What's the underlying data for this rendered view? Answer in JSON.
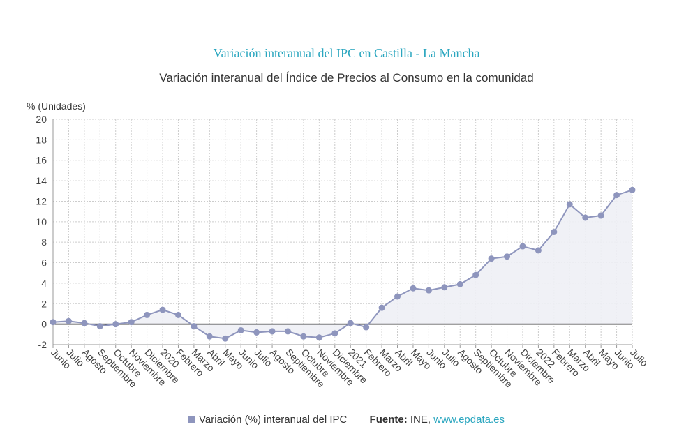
{
  "colors": {
    "series": "#8e95bd",
    "area": "#eeeff5",
    "title": "#2aa6bf",
    "grid": "#cccccc",
    "zero_line": "#000000",
    "link": "#2aa6bf"
  },
  "legend": {
    "series_label": "Variación (%) interanual del IPC",
    "source_label": "Fuente:",
    "source_value": "INE,",
    "source_link": "www.epdata.es"
  },
  "chart_data": {
    "type": "area",
    "title": "Variación interanual del IPC en Castilla - La Mancha",
    "subtitle": "Variación interanual del Índice de Precios al Consumo en la comunidad",
    "xlabel": "",
    "ylabel": "% (Unidades)",
    "ylim": [
      -2,
      20
    ],
    "yticks": [
      -2,
      0,
      2,
      4,
      6,
      8,
      10,
      12,
      14,
      16,
      18,
      20
    ],
    "grid": true,
    "legend_position": "bottom",
    "categories": [
      "Junio",
      "Julio",
      "Agosto",
      "Septiembre",
      "Octubre",
      "Noviembre",
      "Diciembre",
      "2020",
      "Febrero",
      "Marzo",
      "Abril",
      "Mayo",
      "Junio",
      "Julio",
      "Agosto",
      "Septiembre",
      "Octubre",
      "Noviembre",
      "Diciembre",
      "2021",
      "Febrero",
      "Marzo",
      "Abril",
      "Mayo",
      "Junio",
      "Julio",
      "Agosto",
      "Septiembre",
      "Octubre",
      "Noviembre",
      "Diciembre",
      "2022",
      "Febrero",
      "Marzo",
      "Abril",
      "Mayo",
      "Junio",
      "Julio"
    ],
    "series": [
      {
        "name": "Variación (%) interanual del IPC",
        "values": [
          0.2,
          0.3,
          0.1,
          -0.2,
          0.0,
          0.2,
          0.9,
          1.4,
          0.9,
          -0.2,
          -1.2,
          -1.4,
          -0.6,
          -0.8,
          -0.7,
          -0.7,
          -1.2,
          -1.3,
          -0.9,
          0.1,
          -0.3,
          1.6,
          2.7,
          3.5,
          3.3,
          3.6,
          3.9,
          4.8,
          6.4,
          6.6,
          7.6,
          7.2,
          9.0,
          11.7,
          10.4,
          10.6,
          12.6,
          13.1
        ]
      }
    ]
  }
}
